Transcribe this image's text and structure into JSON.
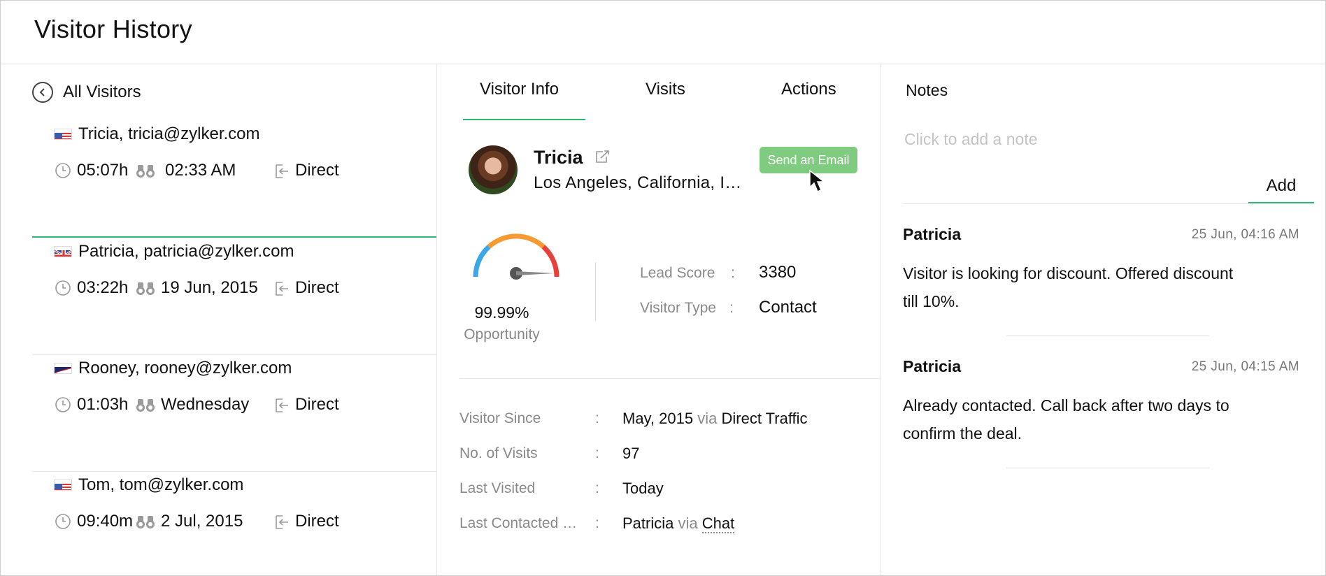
{
  "header": {
    "title": "Visitor History"
  },
  "left": {
    "back_label": "All Visitors",
    "visitors": [
      {
        "name": "Tricia, tricia@zylker.com",
        "duration": "05:07h",
        "seen": "02:33 AM",
        "source": "Direct",
        "flag": "us-flag-icon"
      },
      {
        "name": "Patricia, patricia@zylker.com",
        "duration": "03:22h",
        "seen": "19 Jun, 2015",
        "source": "Direct",
        "flag": "uk-flag-icon"
      },
      {
        "name": "Rooney, rooney@zylker.com",
        "duration": "01:03h",
        "seen": "Wednesday",
        "source": "Direct",
        "flag": "american-samoa-flag-icon"
      },
      {
        "name": "Tom, tom@zylker.com",
        "duration": "09:40m",
        "seen": "2 Jul, 2015",
        "source": "Direct",
        "flag": "us-flag-icon"
      }
    ]
  },
  "middle": {
    "tabs": [
      "Visitor Info",
      "Visits",
      "Actions"
    ],
    "active_tab": "Visitor Info",
    "profile": {
      "name": "Tricia",
      "location": "Los Angeles, California, I…",
      "send_email_label": "Send an Email"
    },
    "score": {
      "percent": "99.99%",
      "label": "Opportunity",
      "gauge_level": 0.9999,
      "lead_score_label": "Lead Score",
      "lead_score_value": "3380",
      "visitor_type_label": "Visitor Type",
      "visitor_type_value": "Contact",
      "colon": ":"
    },
    "info": {
      "visitor_since_label": "Visitor Since",
      "visitor_since_value": "May, 2015",
      "visitor_since_via": "via",
      "visitor_since_source": "Direct Traffic",
      "visits_label": "No. of Visits",
      "visits_value": "97",
      "last_visited_label": "Last Visited",
      "last_visited_value": "Today",
      "last_contacted_label": "Last Contacted …",
      "last_contacted_value": "Patricia",
      "last_contacted_via": "via",
      "last_contacted_channel": "Chat",
      "colon": ":"
    }
  },
  "notes": {
    "title": "Notes",
    "placeholder": "Click to add a note",
    "add_label": "Add",
    "items": [
      {
        "author": "Patricia",
        "time": "25 Jun,  04:16 AM",
        "line1": "Visitor is looking for discount. Offered discount",
        "line2": "till 10%."
      },
      {
        "author": "Patricia",
        "time": "25 Jun,  04:15 AM",
        "line1": "Already contacted. Call back after two days to",
        "line2": "confirm the deal."
      }
    ]
  },
  "colors": {
    "accent": "#2bb673",
    "button": "#7fcb7f",
    "muted": "#8a8a8a"
  }
}
